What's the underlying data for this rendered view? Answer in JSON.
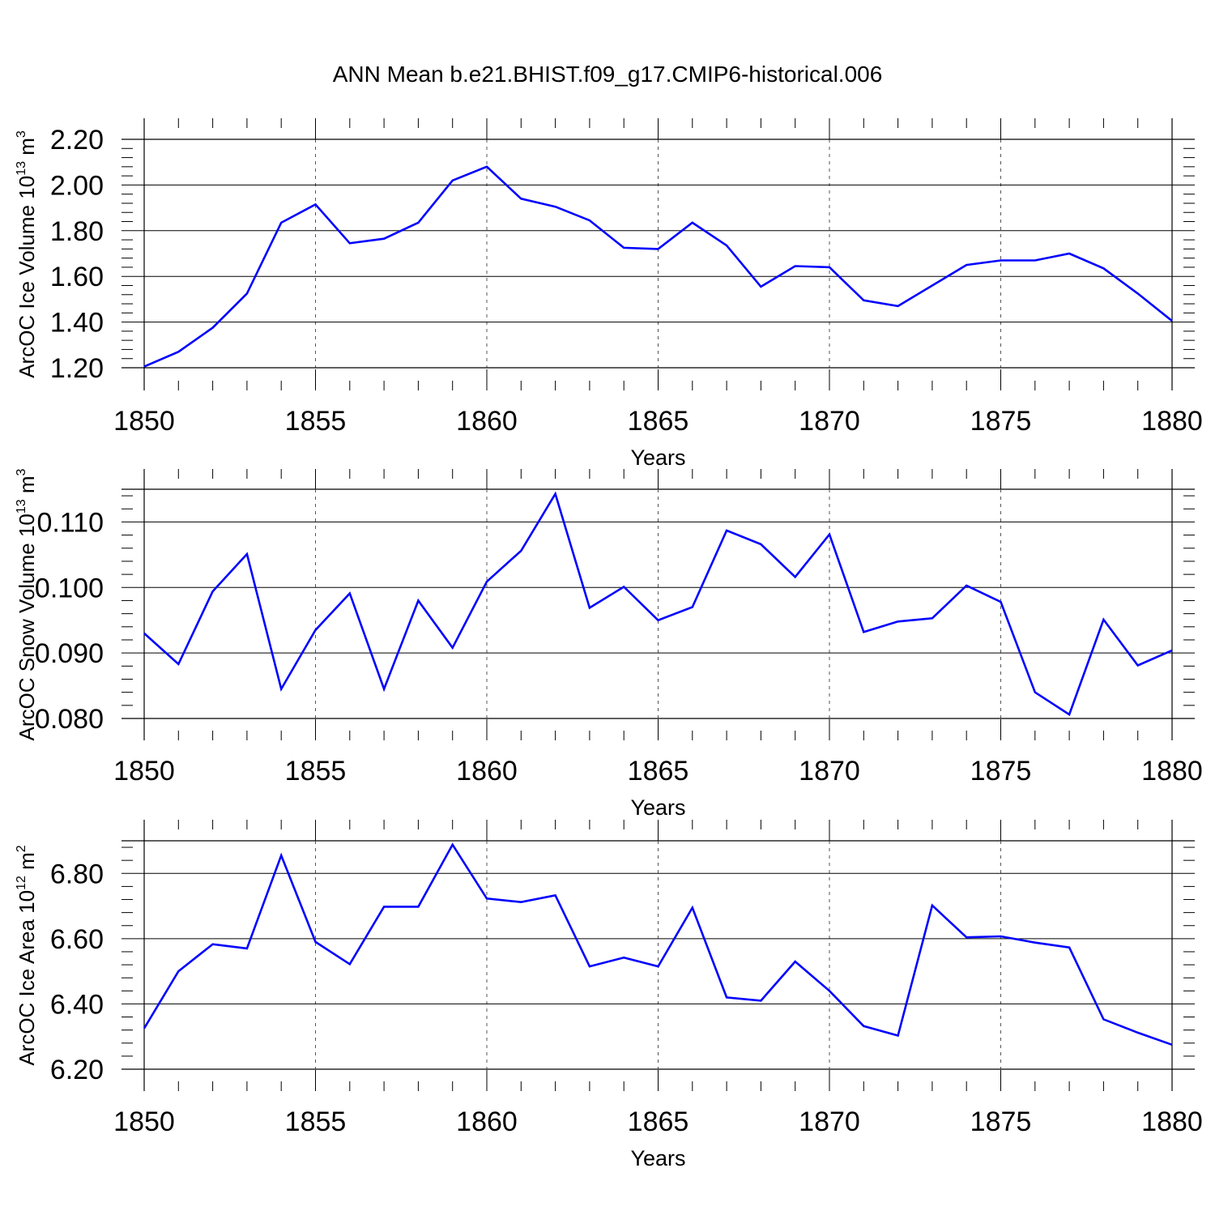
{
  "title": "ANN Mean b.e21.BHIST.f09_g17.CMIP6-historical.006",
  "chart_data": [
    {
      "type": "line",
      "ylabel": "ArcOC Ice Volume 10",
      "ylabel_exp": "13",
      "ylabel_unit": " m",
      "ylabel_unit_exp": "3",
      "xlabel": "Years",
      "xlim": [
        1850,
        1880
      ],
      "ylim": [
        1.2,
        2.2
      ],
      "yticks": [
        "1.20",
        "1.40",
        "1.60",
        "1.80",
        "2.00",
        "2.20"
      ],
      "xticks": [
        "1850",
        "1855",
        "1860",
        "1865",
        "1870",
        "1875",
        "1880"
      ],
      "line_color": "#0000ff",
      "series": [
        {
          "name": "ArcOC Ice Volume",
          "x": [
            1850,
            1851,
            1852,
            1853,
            1854,
            1855,
            1856,
            1857,
            1858,
            1859,
            1860,
            1861,
            1862,
            1863,
            1864,
            1865,
            1866,
            1867,
            1868,
            1869,
            1870,
            1871,
            1872,
            1873,
            1874,
            1875,
            1876,
            1877,
            1878,
            1879,
            1880
          ],
          "values": [
            1.205,
            1.27,
            1.375,
            1.525,
            1.835,
            1.915,
            1.745,
            1.765,
            1.835,
            2.02,
            2.08,
            1.94,
            1.905,
            1.845,
            1.725,
            1.72,
            1.835,
            1.735,
            1.555,
            1.645,
            1.64,
            1.495,
            1.47,
            1.56,
            1.65,
            1.67,
            1.67,
            1.7,
            1.635,
            1.525,
            1.405
          ]
        }
      ]
    },
    {
      "type": "line",
      "ylabel": "ArcOC Snow Volume 10",
      "ylabel_exp": "13",
      "ylabel_unit": " m",
      "ylabel_unit_exp": "3",
      "xlabel": "Years",
      "xlim": [
        1850,
        1880
      ],
      "ylim": [
        0.08,
        0.115
      ],
      "yticks": [
        "0.080",
        "0.090",
        "0.100",
        "0.110"
      ],
      "xticks": [
        "1850",
        "1855",
        "1860",
        "1865",
        "1870",
        "1875",
        "1880"
      ],
      "line_color": "#0000ff",
      "series": [
        {
          "name": "ArcOC Snow Volume",
          "x": [
            1850,
            1851,
            1852,
            1853,
            1854,
            1855,
            1856,
            1857,
            1858,
            1859,
            1860,
            1861,
            1862,
            1863,
            1864,
            1865,
            1866,
            1867,
            1868,
            1869,
            1870,
            1871,
            1872,
            1873,
            1874,
            1875,
            1876,
            1877,
            1878,
            1879,
            1880
          ],
          "values": [
            0.093,
            0.0883,
            0.0994,
            0.1051,
            0.0845,
            0.0935,
            0.0991,
            0.0845,
            0.098,
            0.0908,
            0.1009,
            0.1056,
            0.1143,
            0.0969,
            0.1001,
            0.095,
            0.097,
            0.1087,
            0.1066,
            0.1016,
            0.1081,
            0.0932,
            0.0948,
            0.0953,
            0.1003,
            0.0978,
            0.084,
            0.0806,
            0.0951,
            0.0881,
            0.0904
          ]
        }
      ]
    },
    {
      "type": "line",
      "ylabel": "ArcOC Ice Area 10",
      "ylabel_exp": "12",
      "ylabel_unit": " m",
      "ylabel_unit_exp": "2",
      "xlabel": "Years",
      "xlim": [
        1850,
        1880
      ],
      "ylim": [
        6.2,
        6.9
      ],
      "yticks": [
        "6.20",
        "6.40",
        "6.60",
        "6.80"
      ],
      "xticks": [
        "1850",
        "1855",
        "1860",
        "1865",
        "1870",
        "1875",
        "1880"
      ],
      "line_color": "#0000ff",
      "series": [
        {
          "name": "ArcOC Ice Area",
          "x": [
            1850,
            1851,
            1852,
            1853,
            1854,
            1855,
            1856,
            1857,
            1858,
            1859,
            1860,
            1861,
            1862,
            1863,
            1864,
            1865,
            1866,
            1867,
            1868,
            1869,
            1870,
            1871,
            1872,
            1873,
            1874,
            1875,
            1876,
            1877,
            1878,
            1879,
            1880
          ],
          "values": [
            6.325,
            6.5,
            6.583,
            6.57,
            6.855,
            6.59,
            6.522,
            6.698,
            6.698,
            6.888,
            6.723,
            6.712,
            6.733,
            6.515,
            6.542,
            6.515,
            6.695,
            6.42,
            6.41,
            6.53,
            6.44,
            6.332,
            6.303,
            6.702,
            6.604,
            6.607,
            6.588,
            6.573,
            6.353,
            6.312,
            6.275
          ]
        }
      ]
    }
  ]
}
